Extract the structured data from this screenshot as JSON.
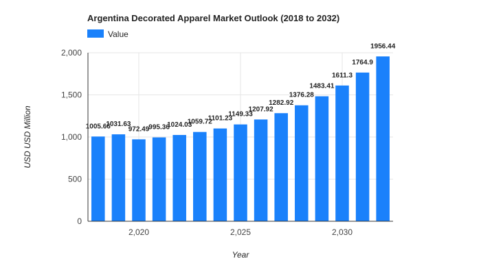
{
  "chart_data": {
    "type": "bar",
    "title": "Argentina Decorated Apparel Market Outlook (2018 to 2032)",
    "xlabel": "Year",
    "ylabel": "USD USD Million",
    "legend": {
      "position": "top-left",
      "entries": [
        "Value"
      ]
    },
    "x": [
      2018,
      2019,
      2020,
      2021,
      2022,
      2023,
      2024,
      2025,
      2026,
      2027,
      2028,
      2029,
      2030,
      2031,
      2032
    ],
    "series": [
      {
        "name": "Value",
        "color": "#1a81fb",
        "values": [
          1005.66,
          1031.63,
          972.49,
          995.36,
          1024.03,
          1059.72,
          1101.23,
          1149.33,
          1207.92,
          1282.92,
          1376.28,
          1483.41,
          1611.3,
          1764.9,
          1956.44
        ],
        "labels": [
          "1005.66",
          "1031.63",
          "972.49",
          "995.36",
          "1024.03",
          "1059.72",
          "1101.23",
          "1149.33",
          "1207.92",
          "1282.92",
          "1376.28",
          "1483.41",
          "1611.3",
          "1764.9",
          "1956.44"
        ]
      }
    ],
    "ylim": [
      0,
      2000
    ],
    "yticks": [
      0,
      500,
      1000,
      1500,
      2000
    ],
    "ytick_labels": [
      "0",
      "500",
      "1,000",
      "1,500",
      "2,000"
    ],
    "xticks": [
      2020,
      2025,
      2030
    ],
    "xtick_labels": [
      "2,020",
      "2,025",
      "2,030"
    ],
    "grid": true,
    "gridline_color": "#e6e6e6",
    "axis_color": "#333333"
  }
}
